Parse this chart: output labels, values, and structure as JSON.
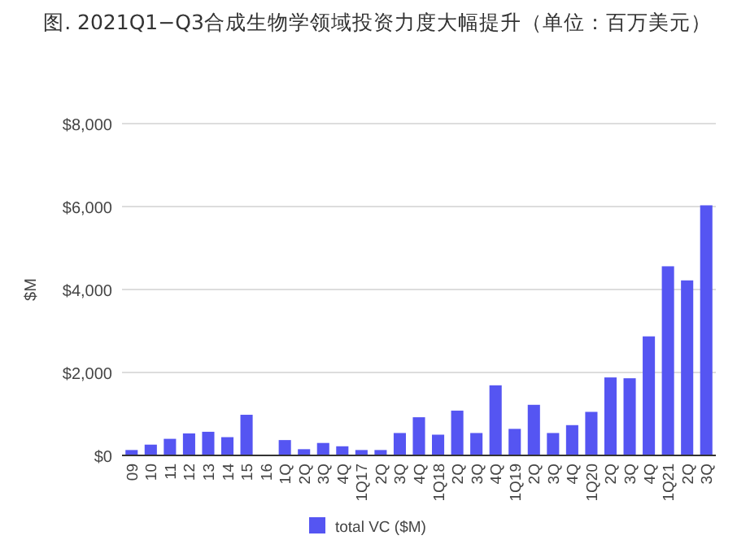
{
  "chart_data": {
    "type": "bar",
    "title": "图. 2021Q1−Q3合成生物学领域投资力度大幅提升（单位：百万美元）",
    "ylabel": "$M",
    "categories": [
      "09",
      "10",
      "11",
      "12",
      "13",
      "14",
      "15",
      "16",
      "1Q",
      "2Q",
      "3Q",
      "4Q",
      "1Q17",
      "2Q",
      "3Q",
      "4Q",
      "1Q18",
      "2Q",
      "3Q",
      "4Q",
      "1Q19",
      "2Q",
      "3Q",
      "4Q",
      "1Q20",
      "2Q",
      "3Q",
      "4Q",
      "1Q21",
      "2Q",
      "3Q"
    ],
    "series": [
      {
        "name": "total VC ($M)",
        "color": "#5555f2",
        "values": [
          130,
          260,
          400,
          530,
          570,
          440,
          980,
          0,
          370,
          150,
          300,
          220,
          130,
          130,
          540,
          920,
          500,
          1080,
          540,
          1690,
          640,
          1220,
          540,
          730,
          1050,
          1880,
          1860,
          2870,
          4560,
          4220,
          6030
        ]
      }
    ],
    "ylim": [
      0,
      8000
    ],
    "yticks": [
      {
        "value": 0,
        "label": "$0"
      },
      {
        "value": 2000,
        "label": "$2,000"
      },
      {
        "value": 4000,
        "label": "$4,000"
      },
      {
        "value": 6000,
        "label": "$6,000"
      },
      {
        "value": 8000,
        "label": "$8,000"
      }
    ],
    "grid": "y",
    "legend": "bottom"
  }
}
